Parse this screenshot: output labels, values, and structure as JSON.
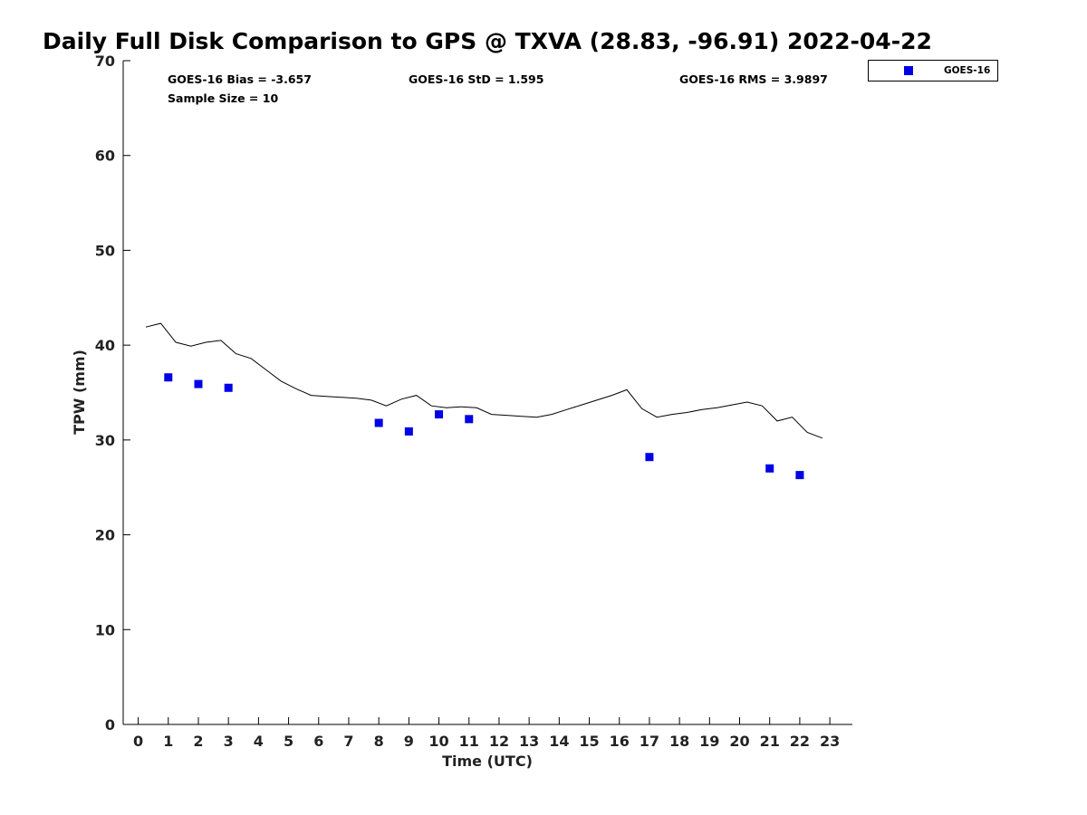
{
  "chart_data": {
    "type": "scatter",
    "title": "Daily Full Disk Comparison to GPS @ TXVA (28.83, -96.91) 2022-04-22",
    "xlabel": "Time (UTC)",
    "ylabel": "TPW (mm)",
    "xlim": [
      -0.5,
      23.75
    ],
    "ylim": [
      0,
      70
    ],
    "x_ticks": [
      0,
      1,
      2,
      3,
      4,
      5,
      6,
      7,
      8,
      9,
      10,
      11,
      12,
      13,
      14,
      15,
      16,
      17,
      18,
      19,
      20,
      21,
      22,
      23
    ],
    "y_ticks": [
      0,
      10,
      20,
      30,
      40,
      50,
      60,
      70
    ],
    "grid": false,
    "legend_position": "top-right, outside plot",
    "stats": {
      "bias": "GOES-16 Bias = -3.657",
      "std": "GOES-16 StD = 1.595",
      "rms": "GOES-16 RMS = 3.9897",
      "sample_size": "Sample Size = 10"
    },
    "series": [
      {
        "name": "GOES-16",
        "kind": "scatter",
        "color": "#0000e6",
        "marker": "square",
        "x": [
          1,
          2,
          3,
          8,
          9,
          10,
          11,
          17,
          21,
          22
        ],
        "y": [
          36.6,
          35.9,
          35.5,
          31.8,
          30.9,
          32.7,
          32.2,
          28.2,
          27.0,
          26.3
        ]
      },
      {
        "kind": "line",
        "color": "#000000",
        "x": [
          0.25,
          0.75,
          1.25,
          1.75,
          2.25,
          2.75,
          3.25,
          3.75,
          4.25,
          4.75,
          5.25,
          5.75,
          6.25,
          6.75,
          7.25,
          7.75,
          8.25,
          8.75,
          9.25,
          9.75,
          10.25,
          10.75,
          11.25,
          11.75,
          12.25,
          12.75,
          13.25,
          13.75,
          14.25,
          14.75,
          15.25,
          15.75,
          16.25,
          16.75,
          17.25,
          17.75,
          18.25,
          18.75,
          19.25,
          19.75,
          20.25,
          20.75,
          21.25,
          21.75,
          22.25,
          22.75
        ],
        "y": [
          41.9,
          42.3,
          40.3,
          39.9,
          40.3,
          40.5,
          39.1,
          38.6,
          37.4,
          36.2,
          35.4,
          34.7,
          34.6,
          34.5,
          34.4,
          34.2,
          33.6,
          34.3,
          34.7,
          33.6,
          33.4,
          33.5,
          33.4,
          32.7,
          32.6,
          32.5,
          32.4,
          32.7,
          33.2,
          33.7,
          34.2,
          34.7,
          35.3,
          33.3,
          32.4,
          32.7,
          32.9,
          33.2,
          33.4,
          33.7,
          34.0,
          33.6,
          32.0,
          32.4,
          30.8,
          30.2
        ]
      }
    ]
  }
}
